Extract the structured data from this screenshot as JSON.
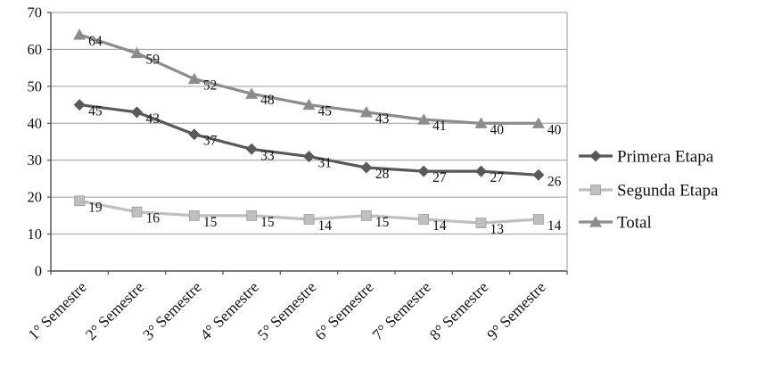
{
  "chart_data": {
    "type": "line",
    "title": "",
    "xlabel": "",
    "ylabel": "",
    "categories": [
      "1° Semestre",
      "2° Semestre",
      "3° Semestre",
      "4° Semestre",
      "5° Semestre",
      "6° Semestre",
      "7° Semestre",
      "8° Semestre",
      "9° Semestre"
    ],
    "series": [
      {
        "name": "Primera Etapa",
        "marker": "diamond",
        "color": "#595959",
        "values": [
          45,
          43,
          37,
          33,
          31,
          28,
          27,
          27,
          26
        ]
      },
      {
        "name": "Segunda Etapa",
        "marker": "square",
        "color": "#bfbfbf",
        "values": [
          19,
          16,
          15,
          15,
          14,
          15,
          14,
          13,
          14
        ]
      },
      {
        "name": "Total",
        "marker": "triangle",
        "color": "#8c8c8c",
        "values": [
          64,
          59,
          52,
          48,
          45,
          43,
          41,
          40,
          40
        ]
      }
    ],
    "ylim": [
      0,
      70
    ],
    "yticks": [
      0,
      10,
      20,
      30,
      40,
      50,
      60,
      70
    ],
    "grid": true,
    "data_labels": true,
    "legend_position": "right",
    "colors": {
      "gridline": "#9b9b9b",
      "axis": "#4d4d4d",
      "label_text": "#111111"
    }
  }
}
